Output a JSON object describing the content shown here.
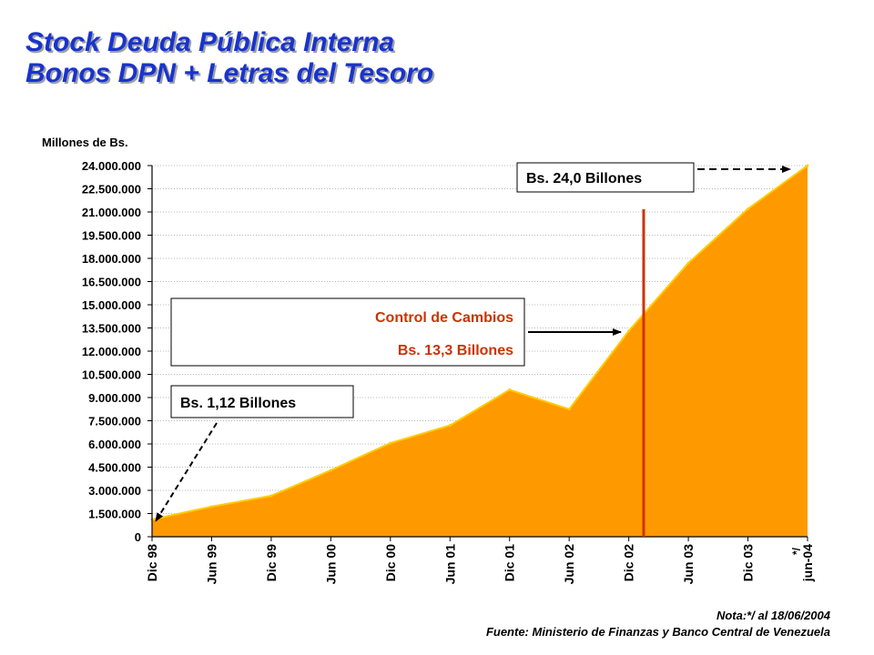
{
  "title": {
    "line1": "Stock Deuda Pública Interna",
    "line2": "Bonos DPN  + Letras del Tesoro"
  },
  "footnotes": {
    "note": "Nota:*/ al 18/06/2004",
    "source": "Fuente: Ministerio de Finanzas y Banco Central de Venezuela"
  },
  "colors": {
    "title": "#1a33cc",
    "area_fill": "#ff9900",
    "area_line": "#ffcc00",
    "event_line": "#cc3300",
    "annotation_red": "#cc3300"
  },
  "chart_data": {
    "type": "area",
    "ylabel": "Millones de Bs.",
    "ylim": [
      0,
      24000000
    ],
    "yticks": [
      "0",
      "1.500.000",
      "3.000.000",
      "4.500.000",
      "6.000.000",
      "7.500.000",
      "9.000.000",
      "10.500.000",
      "12.000.000",
      "13.500.000",
      "15.000.000",
      "16.500.000",
      "18.000.000",
      "19.500.000",
      "21.000.000",
      "22.500.000",
      "24.000.000"
    ],
    "categories": [
      "Dic 98",
      "Jun 99",
      "Dic 99",
      "Jun 00",
      "Dic 00",
      "Jun 01",
      "Dic 01",
      "Jun 02",
      "Dic 02",
      "Jun 03",
      "Dic 03",
      "jun-04"
    ],
    "category_marker": "*/",
    "values": [
      1120000,
      1950000,
      2650000,
      4300000,
      6050000,
      7200000,
      9500000,
      8250000,
      13300000,
      17700000,
      21200000,
      24000000
    ],
    "grid": true,
    "event_marker": {
      "position": "Dic 02 - Jun 03",
      "label": "Control de Cambios"
    },
    "annotations": [
      {
        "label": "Bs. 1,12 Billones",
        "category": "Dic 98"
      },
      {
        "label": "Bs. 13,3 Billones",
        "title": "Control de Cambios",
        "category": "Dic 02"
      },
      {
        "label": "Bs. 24,0 Billones",
        "category": "jun-04"
      }
    ]
  }
}
